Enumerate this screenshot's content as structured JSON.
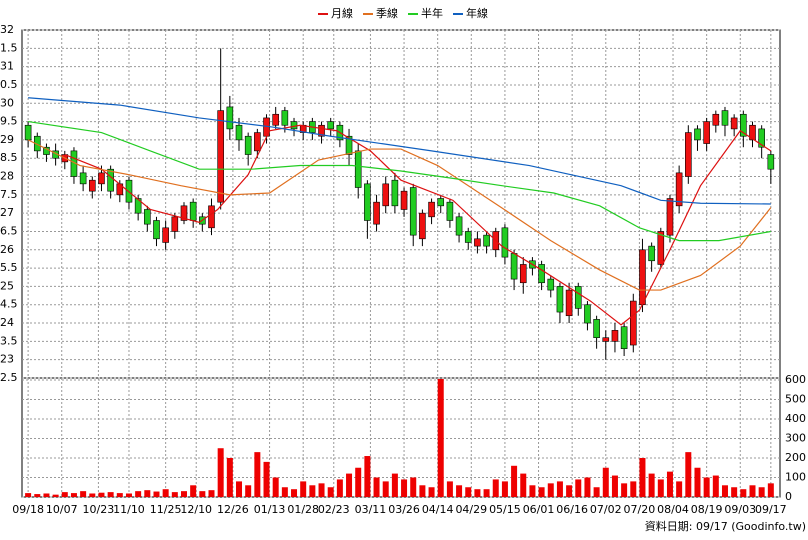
{
  "chart_data": {
    "type": "candlestick",
    "legend": "top",
    "grid": true,
    "up_color": "#ee1111",
    "down_color": "#22cc22",
    "volume_color": "#ee0000",
    "x": [
      0,
      3,
      6,
      9,
      12,
      15,
      18,
      21,
      24,
      27,
      30,
      33,
      36,
      39,
      42,
      45,
      48,
      51,
      54,
      57,
      60,
      63,
      66,
      69,
      72,
      75,
      78,
      81,
      84,
      87,
      90,
      93,
      96,
      99,
      102,
      105,
      108,
      111,
      114,
      117,
      120,
      123,
      126,
      129,
      132,
      135,
      138,
      141,
      144,
      147,
      150,
      153,
      156,
      159,
      162,
      165,
      168,
      171,
      174,
      177,
      180,
      183,
      186,
      189,
      192,
      195,
      198,
      201,
      204,
      207,
      210,
      213,
      216,
      219,
      222,
      225,
      228,
      231,
      234,
      237,
      240,
      243
    ],
    "open": [
      29.4,
      29.1,
      28.8,
      28.7,
      28.4,
      28.7,
      28.1,
      27.6,
      27.8,
      28.2,
      27.5,
      27.9,
      27.4,
      27.1,
      26.8,
      26.2,
      26.5,
      26.8,
      27.3,
      26.9,
      26.6,
      27.3,
      29.9,
      29.4,
      29.1,
      28.7,
      29.1,
      29.4,
      29.8,
      29.5,
      29.2,
      29.5,
      29.1,
      29.5,
      29.4,
      29.1,
      28.7,
      27.8,
      26.7,
      27.2,
      27.9,
      27.1,
      27.7,
      26.3,
      26.9,
      27.4,
      27.3,
      26.9,
      26.5,
      26.1,
      26.4,
      26.0,
      26.6,
      25.9,
      25.1,
      25.7,
      25.6,
      25.2,
      25.0,
      24.2,
      25.0,
      24.5,
      24.1,
      23.5,
      23.5,
      23.9,
      23.4,
      24.5,
      26.1,
      25.6,
      26.4,
      27.2,
      28.0,
      29.3,
      28.9,
      29.4,
      29.8,
      29.3,
      29.7,
      29.0,
      29.3,
      28.6
    ],
    "high": [
      29.5,
      29.2,
      28.9,
      28.9,
      28.7,
      28.8,
      28.3,
      28.0,
      28.3,
      28.3,
      27.9,
      28.0,
      27.5,
      27.2,
      26.9,
      26.8,
      27.0,
      27.3,
      27.4,
      27.0,
      27.4,
      31.5,
      30.2,
      29.6,
      29.2,
      29.3,
      29.7,
      29.9,
      29.9,
      29.6,
      29.5,
      29.6,
      29.5,
      29.6,
      29.5,
      29.3,
      28.9,
      27.9,
      27.5,
      28.0,
      28.1,
      27.7,
      27.8,
      27.1,
      27.4,
      27.5,
      27.4,
      27.0,
      26.6,
      26.5,
      26.5,
      26.6,
      26.7,
      26.0,
      25.8,
      25.8,
      25.7,
      25.3,
      25.1,
      25.1,
      25.1,
      24.6,
      24.2,
      23.8,
      24.0,
      24.0,
      24.8,
      26.3,
      26.2,
      26.6,
      27.5,
      28.3,
      29.4,
      29.4,
      29.6,
      29.8,
      29.9,
      29.7,
      29.8,
      29.5,
      29.4,
      28.7
    ],
    "low": [
      28.8,
      28.5,
      28.4,
      28.3,
      28.2,
      27.8,
      27.6,
      27.4,
      27.6,
      27.4,
      27.3,
      27.1,
      26.8,
      26.5,
      26.1,
      26.0,
      26.3,
      26.7,
      26.6,
      26.5,
      26.4,
      27.1,
      29.0,
      28.7,
      28.3,
      28.5,
      28.9,
      29.3,
      29.2,
      29.1,
      29.0,
      29.0,
      28.9,
      29.1,
      28.8,
      28.3,
      27.4,
      26.3,
      26.5,
      27.0,
      27.0,
      26.9,
      26.1,
      26.1,
      26.7,
      27.0,
      26.6,
      26.2,
      26.0,
      25.9,
      25.9,
      25.8,
      25.6,
      24.9,
      24.8,
      25.3,
      24.9,
      24.7,
      24.0,
      24.0,
      24.2,
      23.8,
      23.3,
      23.0,
      23.2,
      23.1,
      23.2,
      24.3,
      25.4,
      25.5,
      26.2,
      27.0,
      27.8,
      28.7,
      28.7,
      29.2,
      29.1,
      29.1,
      28.8,
      28.8,
      28.5,
      27.8
    ],
    "close": [
      29.0,
      28.7,
      28.6,
      28.5,
      28.6,
      28.0,
      27.8,
      27.9,
      28.1,
      27.6,
      27.8,
      27.3,
      27.0,
      26.7,
      26.3,
      26.6,
      26.9,
      27.2,
      26.8,
      26.7,
      27.2,
      29.8,
      29.3,
      29.0,
      28.6,
      29.2,
      29.6,
      29.7,
      29.4,
      29.3,
      29.4,
      29.2,
      29.4,
      29.3,
      29.0,
      28.6,
      27.7,
      26.8,
      27.3,
      27.8,
      27.2,
      27.6,
      26.4,
      27.0,
      27.3,
      27.2,
      26.8,
      26.4,
      26.2,
      26.3,
      26.1,
      26.5,
      25.8,
      25.2,
      25.6,
      25.5,
      25.1,
      24.9,
      24.3,
      24.9,
      24.4,
      24.0,
      23.6,
      23.6,
      23.8,
      23.3,
      24.6,
      26.0,
      25.7,
      26.5,
      27.4,
      28.1,
      29.2,
      29.0,
      29.5,
      29.7,
      29.4,
      29.6,
      29.1,
      29.4,
      28.8,
      28.2
    ],
    "volume": [
      20,
      15,
      18,
      12,
      25,
      20,
      30,
      18,
      22,
      25,
      20,
      18,
      30,
      35,
      28,
      40,
      25,
      30,
      60,
      30,
      35,
      250,
      200,
      80,
      60,
      230,
      180,
      100,
      50,
      40,
      80,
      60,
      70,
      50,
      90,
      120,
      150,
      210,
      100,
      80,
      120,
      90,
      100,
      60,
      50,
      605,
      80,
      60,
      50,
      40,
      40,
      90,
      80,
      160,
      120,
      60,
      50,
      70,
      80,
      60,
      90,
      100,
      50,
      150,
      110,
      70,
      80,
      200,
      120,
      90,
      130,
      80,
      230,
      150,
      100,
      110,
      60,
      50,
      40,
      60,
      50,
      70
    ],
    "series": [
      {
        "name": "月線",
        "color": "#dd1111",
        "x": [
          12,
          24,
          40,
          56,
          62,
          72,
          79,
          89,
          101,
          112,
          122,
          139,
          155,
          168,
          184,
          194,
          200,
          210,
          220,
          233,
          243
        ],
        "values": [
          28.6,
          28.2,
          27.1,
          26.75,
          27.1,
          28.05,
          29.25,
          29.4,
          29.25,
          28.7,
          27.9,
          27.35,
          26.1,
          25.45,
          24.6,
          23.95,
          24.35,
          26.0,
          27.75,
          29.25,
          28.7
        ]
      },
      {
        "name": "季線",
        "color": "#e07020",
        "x": [
          0,
          17,
          33,
          50,
          66,
          79,
          95,
          112,
          122,
          134,
          154,
          171,
          187,
          200,
          207,
          220,
          233,
          243
        ],
        "values": [
          29.0,
          28.3,
          28.05,
          27.75,
          27.5,
          27.55,
          28.45,
          28.75,
          28.75,
          28.3,
          27.2,
          26.25,
          25.45,
          24.9,
          24.9,
          25.3,
          26.1,
          27.15
        ]
      },
      {
        "name": "半年",
        "color": "#22cc22",
        "x": [
          0,
          24,
          40,
          56,
          73,
          89,
          106,
          122,
          139,
          155,
          172,
          187,
          200,
          213,
          226,
          243
        ],
        "values": [
          29.5,
          29.2,
          28.7,
          28.2,
          28.2,
          28.3,
          28.3,
          28.15,
          27.95,
          27.75,
          27.55,
          27.2,
          26.6,
          26.25,
          26.25,
          26.5
        ]
      },
      {
        "name": "年線",
        "color": "#1060c0",
        "x": [
          0,
          30,
          56,
          80,
          99,
          132,
          164,
          194,
          207,
          220,
          243
        ],
        "values": [
          30.15,
          29.95,
          29.6,
          29.35,
          29.1,
          28.7,
          28.3,
          27.75,
          27.35,
          27.27,
          27.25
        ]
      }
    ],
    "xlim": [
      -2,
      246
    ],
    "xticks": [
      {
        "value": 0,
        "label": "09/18"
      },
      {
        "value": 11,
        "label": "10/07"
      },
      {
        "value": 23,
        "label": "10/23"
      },
      {
        "value": 33,
        "label": "11/10"
      },
      {
        "value": 45,
        "label": "11/25"
      },
      {
        "value": 55,
        "label": "12/10"
      },
      {
        "value": 67,
        "label": "12/26"
      },
      {
        "value": 79,
        "label": "01/13"
      },
      {
        "value": 90,
        "label": "01/28"
      },
      {
        "value": 100,
        "label": "02/23"
      },
      {
        "value": 112,
        "label": "03/11"
      },
      {
        "value": 123,
        "label": "03/26"
      },
      {
        "value": 134,
        "label": "04/14"
      },
      {
        "value": 145,
        "label": "04/29"
      },
      {
        "value": 156,
        "label": "05/15"
      },
      {
        "value": 167,
        "label": "06/01"
      },
      {
        "value": 178,
        "label": "06/16"
      },
      {
        "value": 189,
        "label": "07/02"
      },
      {
        "value": 200,
        "label": "07/20"
      },
      {
        "value": 211,
        "label": "08/04"
      },
      {
        "value": 222,
        "label": "08/19"
      },
      {
        "value": 233,
        "label": "09/03"
      },
      {
        "value": 243,
        "label": "09/17"
      }
    ],
    "ylim": [
      22.5,
      32
    ],
    "yticks": [
      32,
      {
        "value": 31.5,
        "label": "1.5"
      },
      31,
      {
        "value": 30.5,
        "label": "0.5"
      },
      30,
      {
        "value": 29.5,
        "label": "9.5"
      },
      29,
      {
        "value": 28.5,
        "label": "8.5"
      },
      28,
      {
        "value": 27.5,
        "label": "7.5"
      },
      27,
      {
        "value": 26.5,
        "label": "6.5"
      },
      26,
      {
        "value": 25.5,
        "label": "5.5"
      },
      25,
      {
        "value": 24.5,
        "label": "4.5"
      },
      24,
      {
        "value": 23.5,
        "label": "3.5"
      },
      23,
      {
        "value": 22.5,
        "label": "2.5"
      }
    ],
    "y2lim": [
      0,
      610
    ],
    "y2ticks": [
      0,
      100,
      200,
      300,
      400,
      500,
      600
    ],
    "footer": "資料日期: 09/17 (Goodinfo.tw)"
  }
}
